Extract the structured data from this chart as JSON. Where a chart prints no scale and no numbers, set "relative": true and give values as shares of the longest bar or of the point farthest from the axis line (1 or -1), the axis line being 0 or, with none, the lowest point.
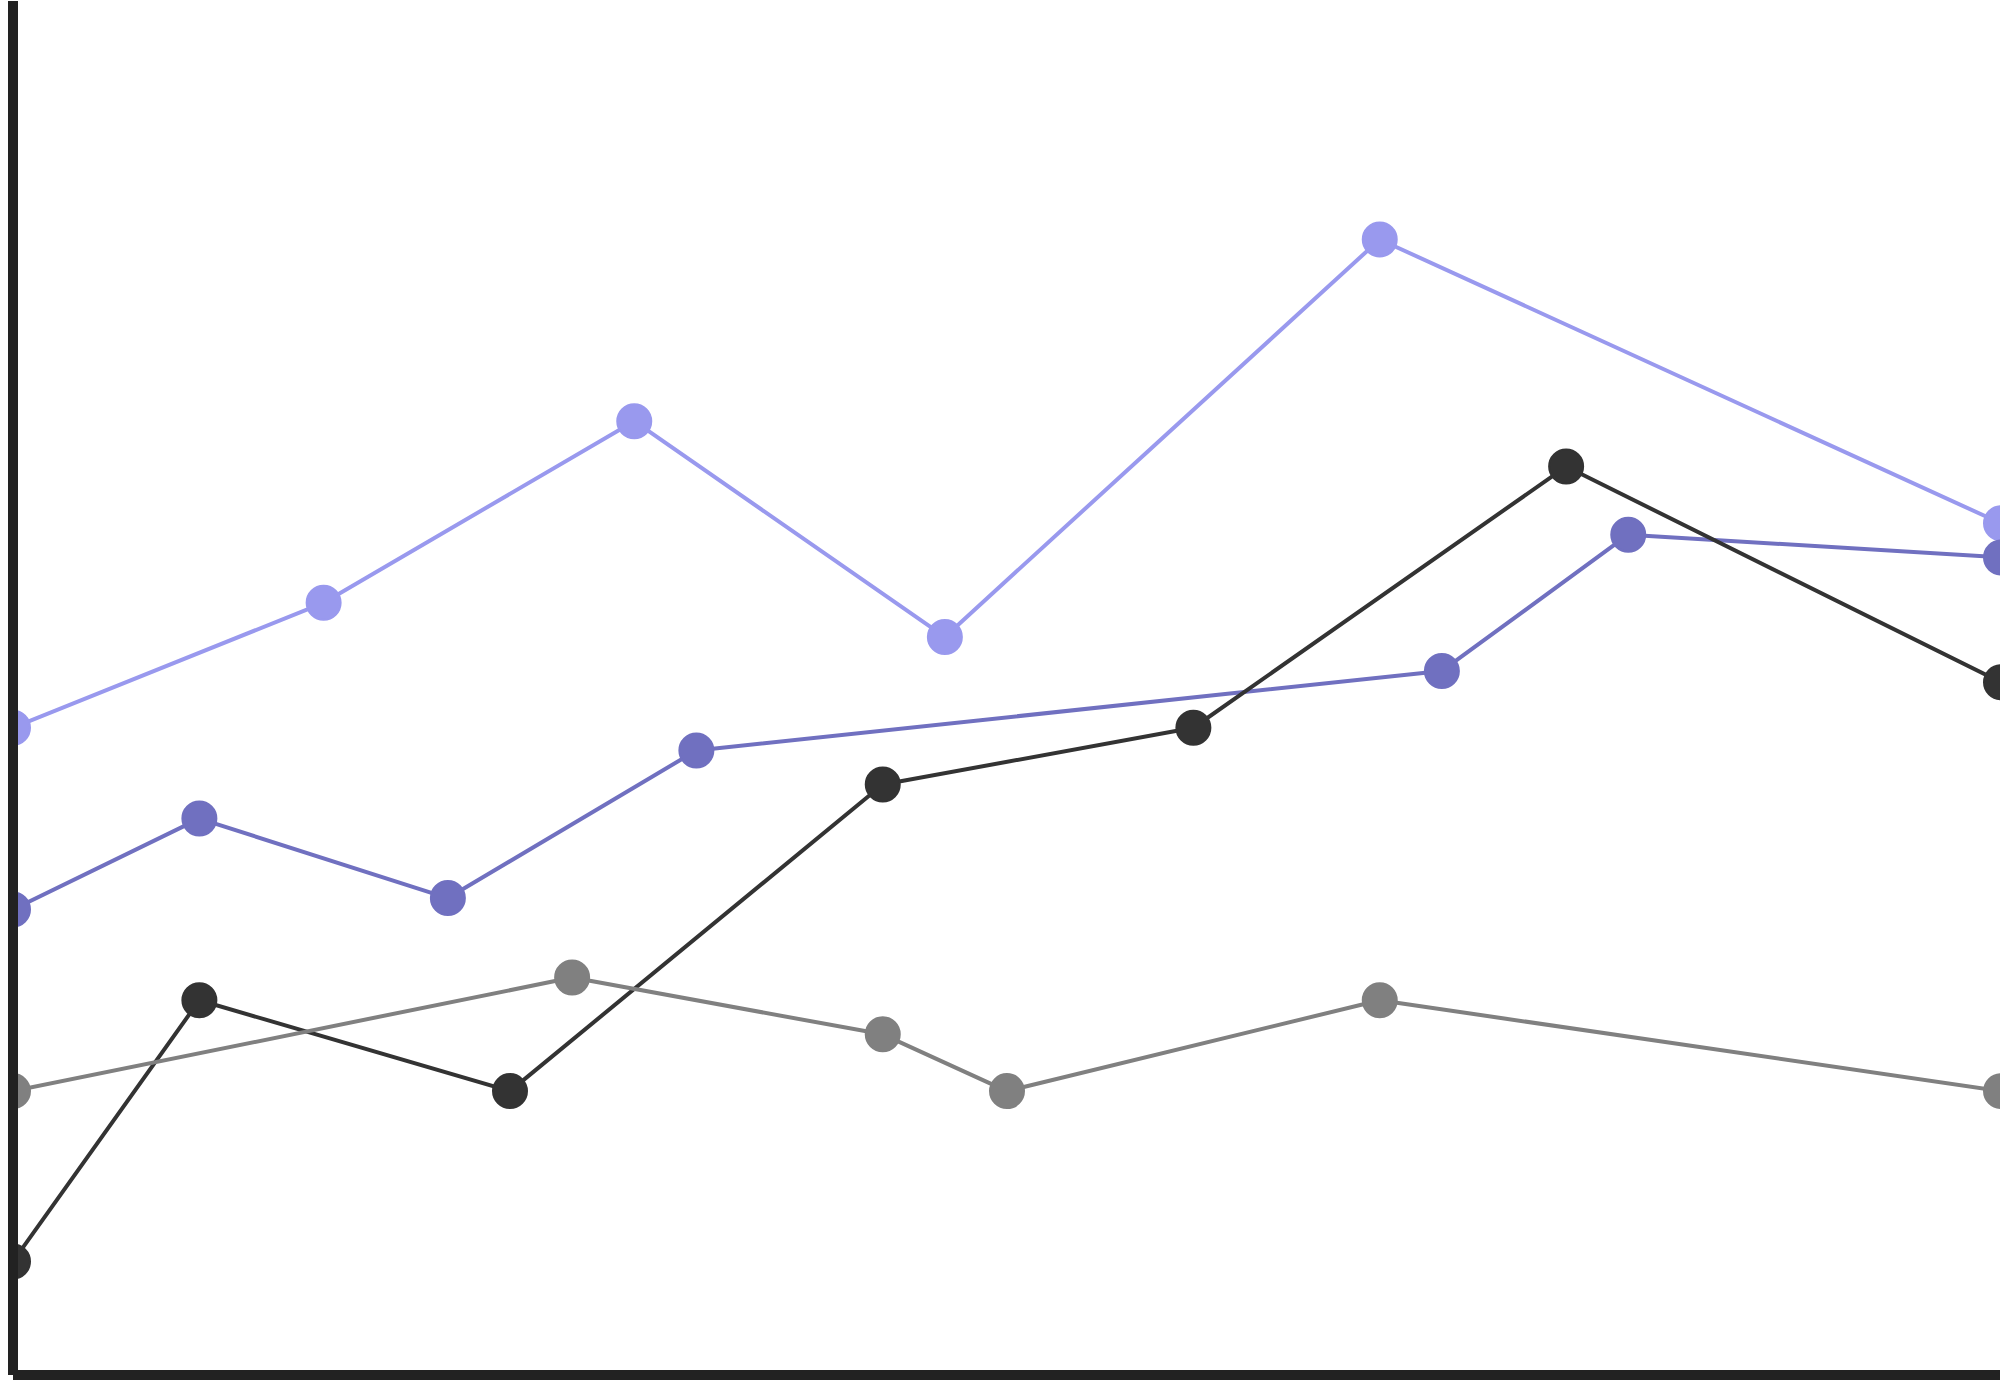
{
  "chart_data": {
    "type": "line",
    "relative": true,
    "marker": "circle",
    "line_style": "solid",
    "categories": [
      null,
      null,
      null,
      null,
      null,
      null,
      null,
      null,
      null,
      null,
      null,
      null,
      null,
      null,
      null,
      null,
      null,
      null,
      null,
      null,
      null,
      null,
      null,
      null,
      null,
      null,
      null,
      null,
      null,
      null,
      null,
      null,
      null
    ],
    "series": [
      {
        "color": "#9999ee",
        "values": [
          0.57,
          null,
          null,
          null,
          null,
          0.68,
          null,
          null,
          null,
          null,
          0.84,
          null,
          null,
          null,
          null,
          0.65,
          null,
          null,
          null,
          null,
          null,
          null,
          1.0,
          null,
          null,
          null,
          null,
          null,
          null,
          null,
          null,
          null,
          0.75
        ]
      },
      {
        "color": "#7070c0",
        "values": [
          0.41,
          null,
          null,
          0.49,
          null,
          null,
          null,
          0.42,
          null,
          null,
          null,
          0.55,
          null,
          null,
          null,
          null,
          null,
          null,
          null,
          null,
          null,
          null,
          null,
          0.62,
          null,
          null,
          0.74,
          null,
          null,
          null,
          null,
          null,
          0.72
        ]
      },
      {
        "color": "#333333",
        "values": [
          0.1,
          null,
          null,
          0.33,
          null,
          null,
          null,
          null,
          0.25,
          null,
          null,
          null,
          null,
          null,
          0.52,
          null,
          null,
          null,
          null,
          0.57,
          null,
          null,
          null,
          null,
          null,
          0.8,
          null,
          null,
          null,
          null,
          null,
          null,
          0.61
        ]
      },
      {
        "color": "#808080",
        "values": [
          0.25,
          null,
          null,
          null,
          null,
          null,
          null,
          null,
          null,
          0.35,
          null,
          null,
          null,
          null,
          0.3,
          null,
          0.25,
          null,
          null,
          null,
          null,
          null,
          0.33,
          null,
          null,
          null,
          null,
          null,
          null,
          null,
          null,
          null,
          0.25
        ]
      }
    ]
  }
}
